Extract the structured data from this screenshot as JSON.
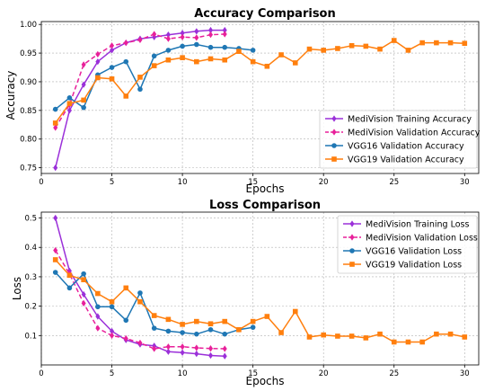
{
  "chart_data": [
    {
      "type": "line",
      "title": "Accuracy Comparison",
      "xlabel": "Epochs",
      "ylabel": "Accuracy",
      "xlim": [
        0,
        31
      ],
      "ylim": [
        0.74,
        1.005
      ],
      "xticks": [
        0,
        5,
        10,
        15,
        20,
        25,
        30
      ],
      "xtick_labels": [
        "0",
        "5",
        "10",
        "15",
        "20",
        "25",
        "30"
      ],
      "yticks": [
        0.75,
        0.8,
        0.85,
        0.9,
        0.95,
        1.0
      ],
      "ytick_labels": [
        "0.75",
        "0.80",
        "0.85",
        "0.90",
        "0.95",
        "1.00"
      ],
      "grid": true,
      "legend_position": "lower-right",
      "series": [
        {
          "name": "MediVision Training Accuracy",
          "color": "#9b30d9",
          "dash": "solid",
          "marker": "diamond",
          "x": [
            1,
            2,
            3,
            4,
            5,
            6,
            7,
            8,
            9,
            10,
            11,
            12,
            13
          ],
          "values": [
            0.75,
            0.85,
            0.895,
            0.935,
            0.955,
            0.968,
            0.975,
            0.978,
            0.982,
            0.985,
            0.988,
            0.99,
            0.99
          ]
        },
        {
          "name": "MediVision Validation Accuracy",
          "color": "#e8209a",
          "dash": "dashed",
          "marker": "diamond",
          "x": [
            1,
            2,
            3,
            4,
            5,
            6,
            7,
            8,
            9,
            10,
            11,
            12,
            13
          ],
          "values": [
            0.82,
            0.86,
            0.93,
            0.948,
            0.963,
            0.968,
            0.973,
            0.983,
            0.975,
            0.978,
            0.977,
            0.982,
            0.983
          ]
        },
        {
          "name": "VGG16 Validation Accuracy",
          "color": "#1f77b4",
          "dash": "solid",
          "marker": "circle",
          "x": [
            1,
            2,
            3,
            4,
            5,
            6,
            7,
            8,
            9,
            10,
            11,
            12,
            13,
            14,
            15
          ],
          "values": [
            0.852,
            0.872,
            0.855,
            0.912,
            0.925,
            0.935,
            0.887,
            0.945,
            0.955,
            0.962,
            0.965,
            0.96,
            0.96,
            0.958,
            0.955
          ]
        },
        {
          "name": "VGG19 Validation Accuracy",
          "color": "#ff7f0e",
          "dash": "solid",
          "marker": "square",
          "x": [
            1,
            2,
            3,
            4,
            5,
            6,
            7,
            8,
            9,
            10,
            11,
            12,
            13,
            14,
            15,
            16,
            17,
            18,
            19,
            20,
            21,
            22,
            23,
            24,
            25,
            26,
            27,
            28,
            29,
            30
          ],
          "values": [
            0.828,
            0.862,
            0.868,
            0.907,
            0.905,
            0.875,
            0.908,
            0.928,
            0.938,
            0.942,
            0.935,
            0.94,
            0.938,
            0.953,
            0.935,
            0.927,
            0.947,
            0.933,
            0.957,
            0.955,
            0.958,
            0.963,
            0.962,
            0.957,
            0.972,
            0.955,
            0.968,
            0.968,
            0.968,
            0.967
          ]
        }
      ]
    },
    {
      "type": "line",
      "title": "Loss Comparison",
      "xlabel": "Epochs",
      "ylabel": "Loss",
      "xlim": [
        0,
        31
      ],
      "ylim": [
        0.0,
        0.52
      ],
      "xticks": [
        0,
        5,
        10,
        15,
        20,
        25,
        30
      ],
      "xtick_labels": [
        "0",
        "5",
        "10",
        "15",
        "20",
        "25",
        "30"
      ],
      "yticks": [
        0.1,
        0.2,
        0.3,
        0.4,
        0.5
      ],
      "ytick_labels": [
        "0.1",
        "0.2",
        "0.3",
        "0.4",
        "0.5"
      ],
      "grid": true,
      "legend_position": "upper-right",
      "series": [
        {
          "name": "MediVision Training Loss",
          "color": "#9b30d9",
          "dash": "solid",
          "marker": "diamond",
          "x": [
            1,
            2,
            3,
            4,
            5,
            6,
            7,
            8,
            9,
            10,
            11,
            12,
            13
          ],
          "values": [
            0.5,
            0.32,
            0.24,
            0.165,
            0.115,
            0.085,
            0.07,
            0.065,
            0.045,
            0.042,
            0.038,
            0.032,
            0.03
          ]
        },
        {
          "name": "MediVision Validation Loss",
          "color": "#e8209a",
          "dash": "dashed",
          "marker": "diamond",
          "x": [
            1,
            2,
            3,
            4,
            5,
            6,
            7,
            8,
            9,
            10,
            11,
            12,
            13
          ],
          "values": [
            0.39,
            0.31,
            0.21,
            0.125,
            0.1,
            0.09,
            0.075,
            0.055,
            0.062,
            0.062,
            0.058,
            0.056,
            0.055
          ]
        },
        {
          "name": "VGG16 Validation Loss",
          "color": "#1f77b4",
          "dash": "solid",
          "marker": "circle",
          "x": [
            1,
            2,
            3,
            4,
            5,
            6,
            7,
            8,
            9,
            10,
            11,
            12,
            13,
            14,
            15
          ],
          "values": [
            0.315,
            0.262,
            0.31,
            0.198,
            0.198,
            0.152,
            0.245,
            0.125,
            0.115,
            0.11,
            0.105,
            0.12,
            0.105,
            0.12,
            0.128
          ]
        },
        {
          "name": "VGG19 Validation Loss",
          "color": "#ff7f0e",
          "dash": "solid",
          "marker": "square",
          "x": [
            1,
            2,
            3,
            4,
            5,
            6,
            7,
            8,
            9,
            10,
            11,
            12,
            13,
            14,
            15,
            16,
            17,
            18,
            19,
            20,
            21,
            22,
            23,
            24,
            25,
            26,
            27,
            28,
            29,
            30
          ],
          "values": [
            0.358,
            0.305,
            0.29,
            0.243,
            0.215,
            0.262,
            0.215,
            0.168,
            0.155,
            0.138,
            0.148,
            0.14,
            0.148,
            0.12,
            0.148,
            0.165,
            0.11,
            0.182,
            0.095,
            0.102,
            0.098,
            0.098,
            0.092,
            0.105,
            0.078,
            0.078,
            0.078,
            0.105,
            0.105,
            0.095
          ]
        }
      ]
    }
  ]
}
